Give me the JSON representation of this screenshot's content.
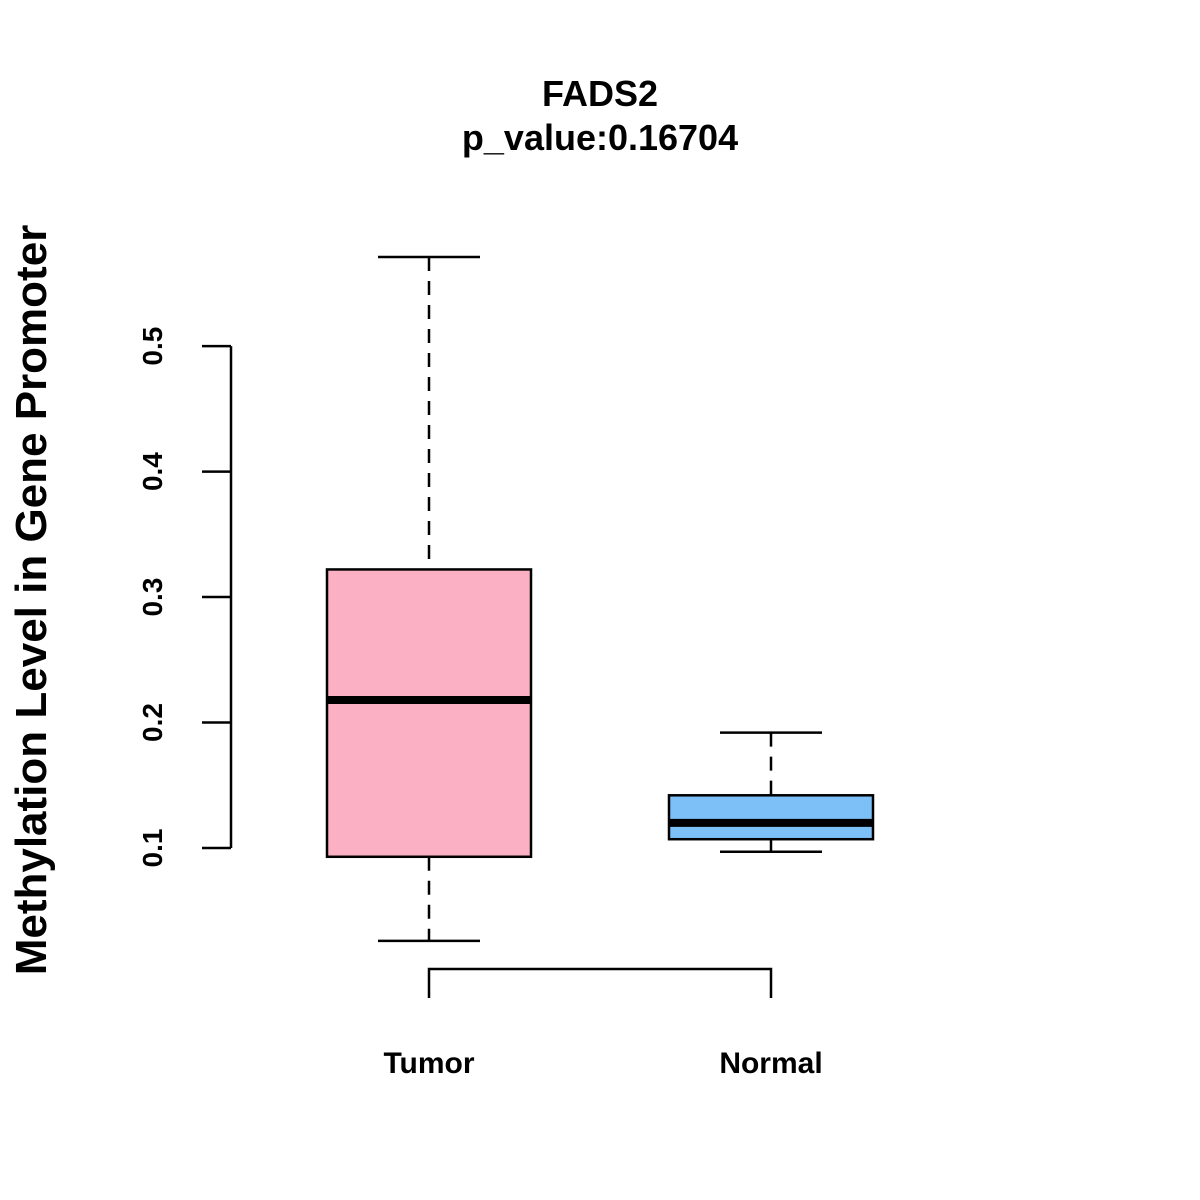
{
  "chart_data": {
    "type": "boxplot",
    "title": "FADS2",
    "subtitle": "p_value:0.16704",
    "xlabel": "",
    "ylabel": "Methylation Level in Gene Promoter",
    "yticks": [
      0.1,
      0.2,
      0.3,
      0.4,
      0.5
    ],
    "ytick_labels": [
      "0.1",
      "0.2",
      "0.3",
      "0.4",
      "0.5"
    ],
    "ylim": [
      0.02,
      0.58
    ],
    "grid": false,
    "categories": [
      "Tumor",
      "Normal"
    ],
    "boxes": [
      {
        "name": "Tumor",
        "min": 0.026,
        "q1": 0.093,
        "median": 0.218,
        "q3": 0.322,
        "max": 0.571,
        "color": "#FBB0C3"
      },
      {
        "name": "Normal",
        "min": 0.097,
        "q1": 0.107,
        "median": 0.12,
        "q3": 0.142,
        "max": 0.192,
        "color": "#7DC0F7"
      }
    ],
    "comparison_bracket": [
      "Tumor",
      "Normal"
    ]
  }
}
